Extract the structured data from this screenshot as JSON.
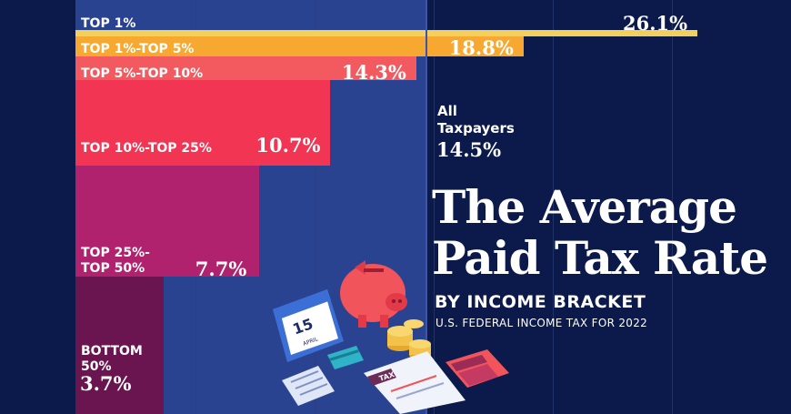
{
  "chart_data": {
    "type": "bar",
    "orientation": "horizontal",
    "title": "The Average\nPaid Tax Rate",
    "subtitle": "BY INCOME BRACKET",
    "caption": "U.S. FEDERAL INCOME TAX FOR 2022",
    "categories": [
      "TOP 1%",
      "TOP 1%-TOP 5%",
      "TOP 5%-TOP 10%",
      "TOP 10%-TOP 25%",
      "TOP 25%-\nTOP 50%",
      "BOTTOM\n50%"
    ],
    "values": [
      26.1,
      18.8,
      14.3,
      10.7,
      7.7,
      3.7
    ],
    "value_labels": [
      "26.1%",
      "18.8%",
      "14.3%",
      "10.7%",
      "7.7%",
      "3.7%"
    ],
    "colors": [
      "#f3cf5b",
      "#f7a830",
      "#f35a5f",
      "#f23552",
      "#b0216e",
      "#6a1450"
    ],
    "reference": {
      "label": "All\nTaxpayers",
      "value": 14.5,
      "value_label": "14.5%"
    },
    "xlim": [
      0,
      26.1
    ],
    "grid": true
  },
  "illustration": {
    "calendar_day": "15",
    "calendar_month": "APRIL",
    "form_label": "TAX"
  }
}
